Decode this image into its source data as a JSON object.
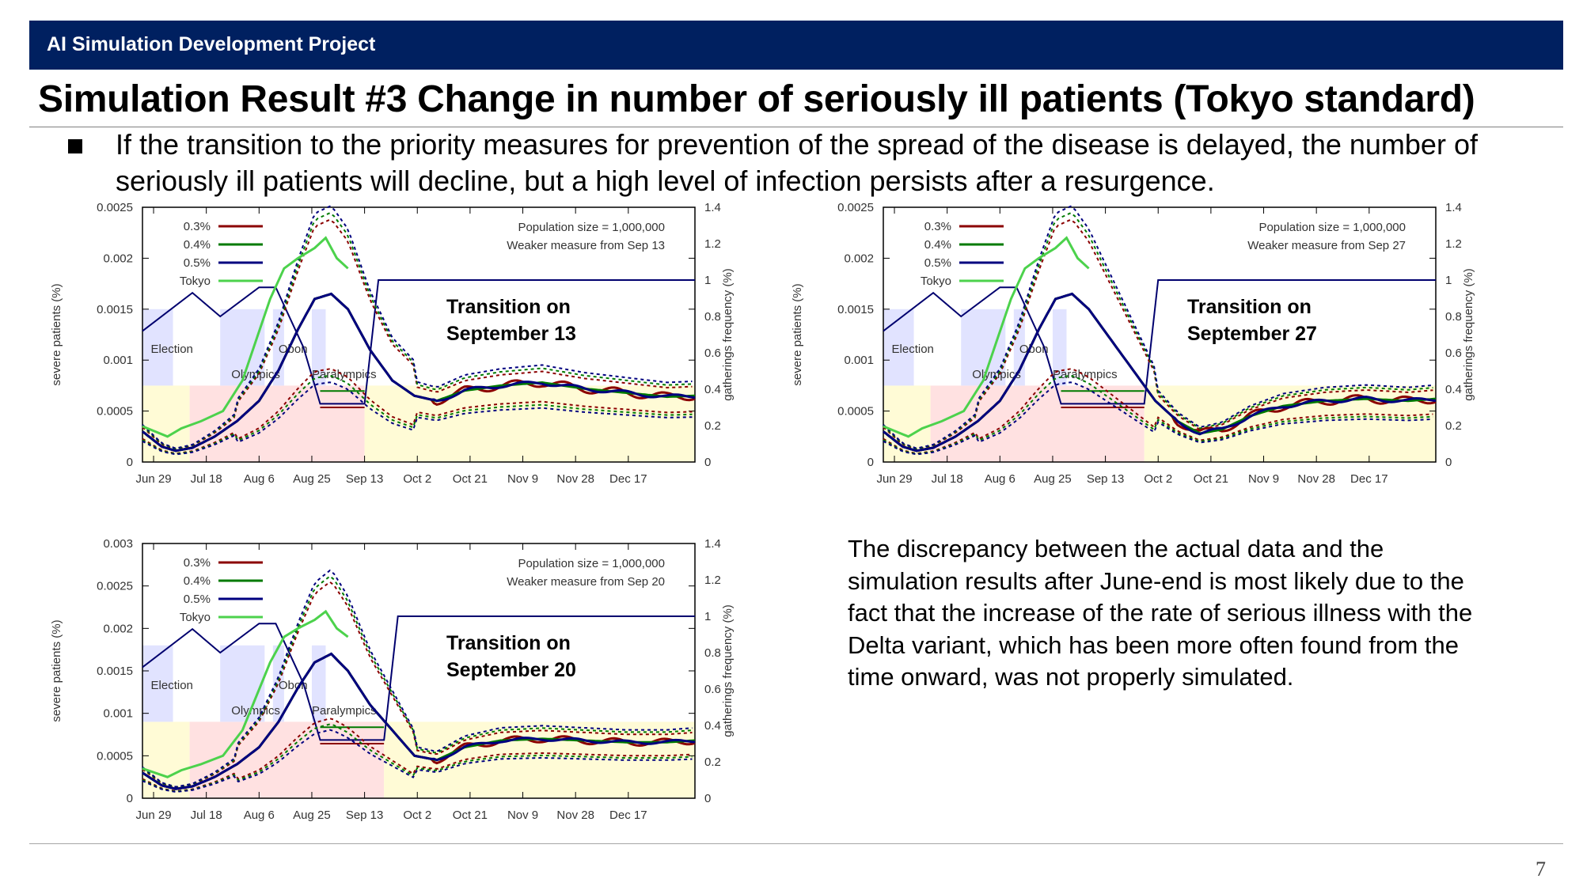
{
  "header": {
    "banner": "AI Simulation Development Project",
    "title": "Simulation Result #3 Change in number of seriously ill patients (Tokyo standard)"
  },
  "bullet": {
    "text": "If the transition to the priority measures for prevention of the spread of the disease is delayed, the number of seriously ill patients will decline, but a high level of infection persists after a resurgence."
  },
  "note": "The discrepancy between the actual data and the simulation results after June-end is most likely due to the fact that the increase of the rate of serious illness with the Delta variant, which has been more often found from the time onward, was not properly simulated.",
  "page_number": "7",
  "colors": {
    "banner": "#002060",
    "s03": "#8b0000",
    "s04": "#007a00",
    "s05": "#00007f",
    "tokyo": "#4cd24c",
    "gathering": "#00006e",
    "shade_yellow": "#fffbd6",
    "shade_pink": "#ffe1e1",
    "shade_blue": "#e1e3ff"
  },
  "chart_data": [
    {
      "type": "line",
      "id": "sep13",
      "annotation": "Transition on September 13",
      "info_lines": [
        "Population size = 1,000,000",
        "Weaker measure from Sep 13"
      ],
      "ylabel": "severe patients (%)",
      "y2label": "gatherings frequency (%)",
      "x_ticks": [
        "Jun 29",
        "Jul 18",
        "Aug 6",
        "Aug 25",
        "Sep 13",
        "Oct 2",
        "Oct 21",
        "Nov 9",
        "Nov 28",
        "Dec 17"
      ],
      "ylim": [
        0,
        0.0025
      ],
      "y_ticks": [
        "0",
        "0.0005",
        "0.001",
        "0.0015",
        "0.002",
        "0.0025"
      ],
      "y2lim": [
        0,
        1.4
      ],
      "y2_ticks": [
        "0",
        "0.2",
        "0.4",
        "0.6",
        "0.8",
        "1",
        "1.2",
        "1.4"
      ],
      "xlim_days": [
        -4,
        195
      ],
      "region_labels": [
        "Election",
        "Olympics",
        "Obon",
        "Paralympics"
      ],
      "legend": [
        "0.3%",
        "0.4%",
        "0.5%",
        "Tokyo"
      ],
      "transition_day": 76,
      "gathering_points": [
        [
          -4,
          0.72
        ],
        [
          14,
          0.93
        ],
        [
          24,
          0.8
        ],
        [
          38,
          0.96
        ],
        [
          44,
          0.96
        ],
        [
          54,
          0.63
        ],
        [
          60,
          0.32
        ],
        [
          76,
          0.32
        ],
        [
          81,
          1.0
        ],
        [
          195,
          1.0
        ]
      ],
      "tokyo_points": [
        [
          -4,
          0.00035
        ],
        [
          5,
          0.00025
        ],
        [
          10,
          0.00033
        ],
        [
          17,
          0.0004
        ],
        [
          25,
          0.0005
        ],
        [
          32,
          0.0008
        ],
        [
          37,
          0.0012
        ],
        [
          42,
          0.0016
        ],
        [
          47,
          0.0019
        ],
        [
          52,
          0.002
        ],
        [
          58,
          0.0021
        ],
        [
          62,
          0.0022
        ],
        [
          66,
          0.002
        ],
        [
          70,
          0.0019
        ]
      ],
      "sim_points": [
        [
          -4,
          0.0003
        ],
        [
          3,
          0.00015
        ],
        [
          8,
          0.00011
        ],
        [
          14,
          0.00014
        ],
        [
          22,
          0.00025
        ],
        [
          30,
          0.0004
        ],
        [
          38,
          0.0006
        ],
        [
          45,
          0.0009
        ],
        [
          52,
          0.0013
        ],
        [
          58,
          0.0016
        ],
        [
          64,
          0.00165
        ],
        [
          70,
          0.0015
        ],
        [
          78,
          0.0011
        ],
        [
          86,
          0.0008
        ],
        [
          94,
          0.00065
        ],
        [
          102,
          0.0006
        ],
        [
          112,
          0.0007
        ],
        [
          125,
          0.00075
        ],
        [
          140,
          0.00078
        ],
        [
          155,
          0.00072
        ],
        [
          170,
          0.00068
        ],
        [
          185,
          0.00064
        ],
        [
          195,
          0.00065
        ]
      ],
      "dashed_upper_peak": 0.00245,
      "dashed_lower_peak": 0.00085
    },
    {
      "type": "line",
      "id": "sep27",
      "annotation": "Transition on September 27",
      "info_lines": [
        "Population size = 1,000,000",
        "Weaker measure from Sep 27"
      ],
      "ylabel": "severe patients (%)",
      "y2label": "gatherings frequency (%)",
      "x_ticks": [
        "Jun 29",
        "Jul 18",
        "Aug 6",
        "Aug 25",
        "Sep 13",
        "Oct 2",
        "Oct 21",
        "Nov 9",
        "Nov 28",
        "Dec 17"
      ],
      "ylim": [
        0,
        0.0025
      ],
      "y_ticks": [
        "0",
        "0.0005",
        "0.001",
        "0.0015",
        "0.002",
        "0.0025"
      ],
      "y2lim": [
        0,
        1.4
      ],
      "y2_ticks": [
        "0",
        "0.2",
        "0.4",
        "0.6",
        "0.8",
        "1",
        "1.2",
        "1.4"
      ],
      "xlim_days": [
        -4,
        195
      ],
      "region_labels": [
        "Election",
        "Olympics",
        "Obon",
        "Paralympics"
      ],
      "legend": [
        "0.3%",
        "0.4%",
        "0.5%",
        "Tokyo"
      ],
      "transition_day": 90,
      "gathering_points": [
        [
          -4,
          0.72
        ],
        [
          14,
          0.93
        ],
        [
          24,
          0.8
        ],
        [
          38,
          0.96
        ],
        [
          44,
          0.96
        ],
        [
          54,
          0.63
        ],
        [
          60,
          0.32
        ],
        [
          90,
          0.32
        ],
        [
          95,
          1.0
        ],
        [
          195,
          1.0
        ]
      ],
      "tokyo_points": [
        [
          -4,
          0.00035
        ],
        [
          5,
          0.00025
        ],
        [
          10,
          0.00033
        ],
        [
          17,
          0.0004
        ],
        [
          25,
          0.0005
        ],
        [
          32,
          0.0008
        ],
        [
          37,
          0.0012
        ],
        [
          42,
          0.0016
        ],
        [
          47,
          0.0019
        ],
        [
          52,
          0.002
        ],
        [
          58,
          0.0021
        ],
        [
          62,
          0.0022
        ],
        [
          66,
          0.002
        ],
        [
          70,
          0.0019
        ]
      ],
      "sim_points": [
        [
          -4,
          0.0003
        ],
        [
          3,
          0.00015
        ],
        [
          8,
          0.00011
        ],
        [
          14,
          0.00014
        ],
        [
          22,
          0.00025
        ],
        [
          30,
          0.0004
        ],
        [
          38,
          0.0006
        ],
        [
          45,
          0.0009
        ],
        [
          52,
          0.0013
        ],
        [
          58,
          0.0016
        ],
        [
          64,
          0.00165
        ],
        [
          70,
          0.0015
        ],
        [
          78,
          0.0012
        ],
        [
          86,
          0.0009
        ],
        [
          94,
          0.0006
        ],
        [
          102,
          0.0004
        ],
        [
          110,
          0.00028
        ],
        [
          118,
          0.00032
        ],
        [
          128,
          0.00045
        ],
        [
          140,
          0.00055
        ],
        [
          155,
          0.0006
        ],
        [
          170,
          0.00062
        ],
        [
          185,
          0.0006
        ],
        [
          195,
          0.00062
        ]
      ],
      "dashed_upper_peak": 0.00245,
      "dashed_lower_peak": 0.00085
    },
    {
      "type": "line",
      "id": "sep20",
      "annotation": "Transition on September 20",
      "info_lines": [
        "Population size = 1,000,000",
        "Weaker measure from Sep 20"
      ],
      "ylabel": "severe patients (%)",
      "y2label": "gatherings frequency (%)",
      "x_ticks": [
        "Jun 29",
        "Jul 18",
        "Aug 6",
        "Aug 25",
        "Sep 13",
        "Oct 2",
        "Oct 21",
        "Nov 9",
        "Nov 28",
        "Dec 17"
      ],
      "ylim": [
        0,
        0.003
      ],
      "y_ticks": [
        "0",
        "0.0005",
        "0.001",
        "0.0015",
        "0.002",
        "0.0025",
        "0.003"
      ],
      "y2lim": [
        0,
        1.4
      ],
      "y2_ticks": [
        "0",
        "0.2",
        "0.4",
        "0.6",
        "0.8",
        "1",
        "1.2",
        "1.4"
      ],
      "xlim_days": [
        -4,
        195
      ],
      "region_labels": [
        "Election",
        "Olympics",
        "Obon",
        "Paralympics"
      ],
      "legend": [
        "0.3%",
        "0.4%",
        "0.5%",
        "Tokyo"
      ],
      "transition_day": 83,
      "gathering_points": [
        [
          -4,
          0.72
        ],
        [
          14,
          0.93
        ],
        [
          24,
          0.8
        ],
        [
          38,
          0.96
        ],
        [
          44,
          0.96
        ],
        [
          54,
          0.63
        ],
        [
          60,
          0.32
        ],
        [
          83,
          0.32
        ],
        [
          88,
          1.0
        ],
        [
          195,
          1.0
        ]
      ],
      "tokyo_points": [
        [
          -4,
          0.00035
        ],
        [
          5,
          0.00025
        ],
        [
          10,
          0.00033
        ],
        [
          17,
          0.0004
        ],
        [
          25,
          0.0005
        ],
        [
          32,
          0.0008
        ],
        [
          37,
          0.0012
        ],
        [
          42,
          0.0016
        ],
        [
          47,
          0.0019
        ],
        [
          52,
          0.002
        ],
        [
          58,
          0.0021
        ],
        [
          62,
          0.0022
        ],
        [
          66,
          0.002
        ],
        [
          70,
          0.0019
        ]
      ],
      "sim_points": [
        [
          -4,
          0.0003
        ],
        [
          3,
          0.00015
        ],
        [
          8,
          0.00011
        ],
        [
          14,
          0.00014
        ],
        [
          22,
          0.00025
        ],
        [
          30,
          0.0004
        ],
        [
          38,
          0.0006
        ],
        [
          45,
          0.0009
        ],
        [
          52,
          0.0013
        ],
        [
          58,
          0.0016
        ],
        [
          64,
          0.0017
        ],
        [
          70,
          0.0015
        ],
        [
          78,
          0.0011
        ],
        [
          86,
          0.0008
        ],
        [
          94,
          0.0005
        ],
        [
          102,
          0.00045
        ],
        [
          112,
          0.0006
        ],
        [
          125,
          0.00068
        ],
        [
          140,
          0.0007
        ],
        [
          155,
          0.00068
        ],
        [
          170,
          0.00066
        ],
        [
          185,
          0.00066
        ],
        [
          195,
          0.00068
        ]
      ],
      "dashed_upper_peak": 0.00255,
      "dashed_lower_peak": 0.00085
    }
  ]
}
